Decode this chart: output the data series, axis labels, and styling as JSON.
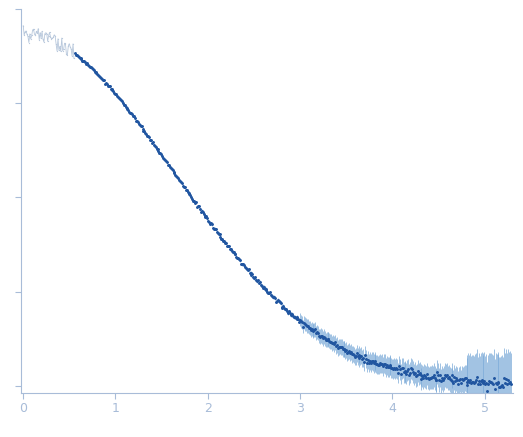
{
  "title": "",
  "xlabel": "",
  "ylabel": "",
  "xlim": [
    -0.02,
    5.3
  ],
  "ylim": [
    -0.02,
    1.0
  ],
  "background_color": "#ffffff",
  "axis_color": "#a8bcd8",
  "data_color": "#2055a0",
  "error_color": "#7aaad8",
  "excluded_color": "#b8c8dc",
  "xticks": [
    0,
    1,
    2,
    3,
    4,
    5
  ],
  "n_points": 520,
  "q_max": 5.28,
  "Rg": 0.75,
  "n_excluded": 55,
  "seed": 17
}
